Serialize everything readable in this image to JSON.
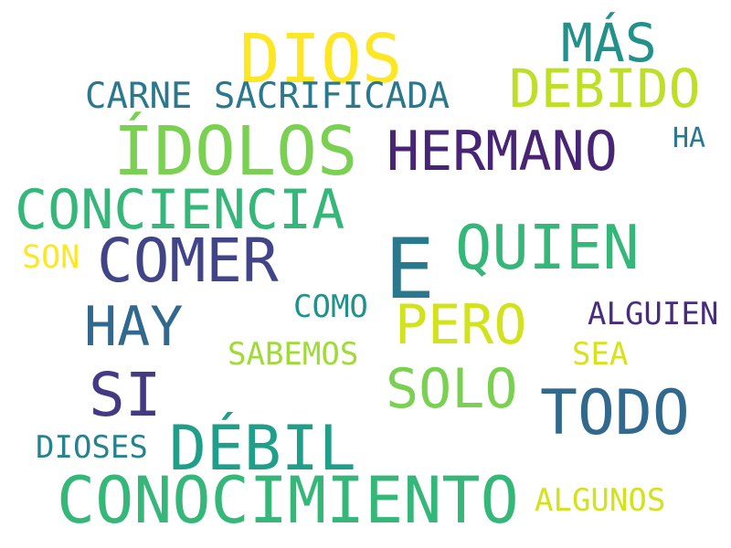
{
  "words": [
    {
      "id": "dios",
      "text": "DIOS",
      "color": "#fde725"
    },
    {
      "id": "mas",
      "text": "MÁS",
      "color": "#21918c"
    },
    {
      "id": "debido",
      "text": "DEBIDO",
      "color": "#bddf26"
    },
    {
      "id": "carne-sacrificada",
      "text": "CARNE SACRIFICADA",
      "color": "#2a788e"
    },
    {
      "id": "idolos",
      "text": "ÍDOLOS",
      "color": "#7ad151"
    },
    {
      "id": "hermano",
      "text": "HERMANO",
      "color": "#482475"
    },
    {
      "id": "ha",
      "text": "HA",
      "color": "#2a788e"
    },
    {
      "id": "conciencia",
      "text": "CONCIENCIA",
      "color": "#35b779"
    },
    {
      "id": "quien",
      "text": "QUIEN",
      "color": "#35b779"
    },
    {
      "id": "e",
      "text": "E",
      "color": "#2a788e"
    },
    {
      "id": "comer",
      "text": "COMER",
      "color": "#414487"
    },
    {
      "id": "son",
      "text": "SON",
      "color": "#fde725"
    },
    {
      "id": "hay",
      "text": "HAY",
      "color": "#31688e"
    },
    {
      "id": "como",
      "text": "COMO",
      "color": "#21918c"
    },
    {
      "id": "pero",
      "text": "PERO",
      "color": "#d2e21b"
    },
    {
      "id": "alguien",
      "text": "ALGUIEN",
      "color": "#472d7b"
    },
    {
      "id": "sabemos",
      "text": "SABEMOS",
      "color": "#a0da39"
    },
    {
      "id": "sea",
      "text": "SEA",
      "color": "#d8e219"
    },
    {
      "id": "si",
      "text": "SI",
      "color": "#443983"
    },
    {
      "id": "solo",
      "text": "SOLO",
      "color": "#7ad151"
    },
    {
      "id": "todo",
      "text": "TODO",
      "color": "#31688e"
    },
    {
      "id": "debil",
      "text": "DÉBIL",
      "color": "#1f9e89"
    },
    {
      "id": "dioses",
      "text": "DIOSES",
      "color": "#26828e"
    },
    {
      "id": "conocimiento",
      "text": "CONOCIMIENTO",
      "color": "#35b779"
    },
    {
      "id": "algunos",
      "text": "ALGUNOS",
      "color": "#d2e21b"
    }
  ]
}
